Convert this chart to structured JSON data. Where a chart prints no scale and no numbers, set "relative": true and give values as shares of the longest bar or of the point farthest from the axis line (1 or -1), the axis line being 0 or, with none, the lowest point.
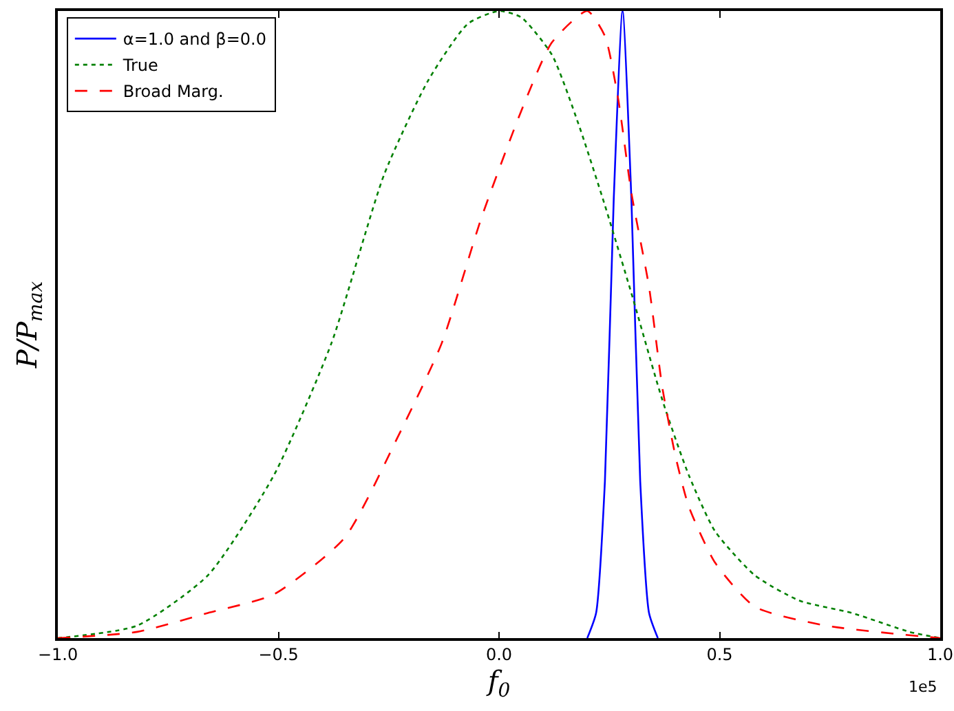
{
  "chart_data": {
    "type": "line",
    "xlabel": "f$_{0}$",
    "ylabel": "P/P$_{max}$",
    "relative": true,
    "xlim": [
      -1.0,
      1.0
    ],
    "xticks": [
      {
        "value": -1,
        "label": "−1.0"
      },
      {
        "value": -0.5,
        "label": "−0.5"
      },
      {
        "value": 0,
        "label": "0.0"
      },
      {
        "value": 0.5,
        "label": "0.5"
      },
      {
        "value": 1,
        "label": "1.0"
      }
    ],
    "tick_labels": "x",
    "grid": false,
    "legend": "top left",
    "marker": "none",
    "annotations": [
      "1e5"
    ],
    "series": [
      {
        "name": "α=1.0 and β=0.0",
        "color": "#0000ff",
        "line_style": "solid",
        "x": [
          0.2,
          0.22,
          0.24,
          0.26,
          0.28,
          0.3,
          0.32,
          0.34,
          0.36
        ],
        "values": [
          0.0,
          0.04,
          0.25,
          0.7,
          1.0,
          0.7,
          0.25,
          0.04,
          0.0
        ]
      },
      {
        "name": "True",
        "color": "#008000",
        "line_style": "dotted",
        "x": [
          -1.0,
          -0.82,
          -0.66,
          -0.51,
          -0.38,
          -0.26,
          -0.16,
          -0.07,
          0.0,
          0.05,
          0.12,
          0.18,
          0.24,
          0.3,
          0.37,
          0.43,
          0.49,
          0.58,
          0.68,
          0.8,
          0.93,
          1.0
        ],
        "values": [
          0.0,
          0.02,
          0.1,
          0.26,
          0.47,
          0.74,
          0.89,
          0.98,
          1.0,
          0.99,
          0.93,
          0.82,
          0.69,
          0.55,
          0.38,
          0.26,
          0.17,
          0.1,
          0.06,
          0.04,
          0.01,
          0.0
        ]
      },
      {
        "name": "Broad Marg.",
        "color": "#ff0000",
        "line_style": "dashed",
        "x": [
          -1.0,
          -0.82,
          -0.66,
          -0.51,
          -0.35,
          -0.23,
          -0.13,
          -0.04,
          0.05,
          0.12,
          0.2,
          0.24,
          0.27,
          0.3,
          0.34,
          0.37,
          0.4,
          0.43,
          0.49,
          0.58,
          0.74,
          1.0
        ],
        "values": [
          0.0,
          0.01,
          0.04,
          0.07,
          0.16,
          0.32,
          0.47,
          0.67,
          0.84,
          0.95,
          1.0,
          0.96,
          0.86,
          0.71,
          0.56,
          0.4,
          0.29,
          0.21,
          0.12,
          0.05,
          0.02,
          0.0
        ]
      }
    ]
  }
}
